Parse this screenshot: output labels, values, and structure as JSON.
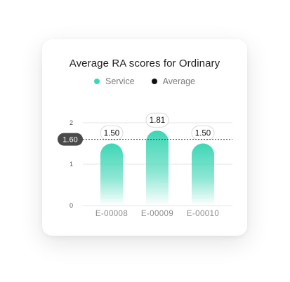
{
  "chart_data": {
    "type": "bar",
    "title": "Average RA scores for Ordinary",
    "legend": [
      {
        "name": "Service",
        "color": "#3ed6b5"
      },
      {
        "name": "Average",
        "color": "#111111"
      }
    ],
    "categories": [
      "E-00008",
      "E-00009",
      "E-00010"
    ],
    "series": [
      {
        "name": "Service",
        "values": [
          1.5,
          1.81,
          1.5
        ],
        "labels": [
          "1.50",
          "1.81",
          "1.50"
        ]
      }
    ],
    "average": {
      "value": 1.6,
      "label": "1.60"
    },
    "yticks": [
      {
        "value": 0,
        "label": "0"
      },
      {
        "value": 1,
        "label": "1"
      },
      {
        "value": 2,
        "label": "2"
      }
    ],
    "ylim": [
      0,
      2
    ],
    "grid": true,
    "legend_position": "top"
  }
}
